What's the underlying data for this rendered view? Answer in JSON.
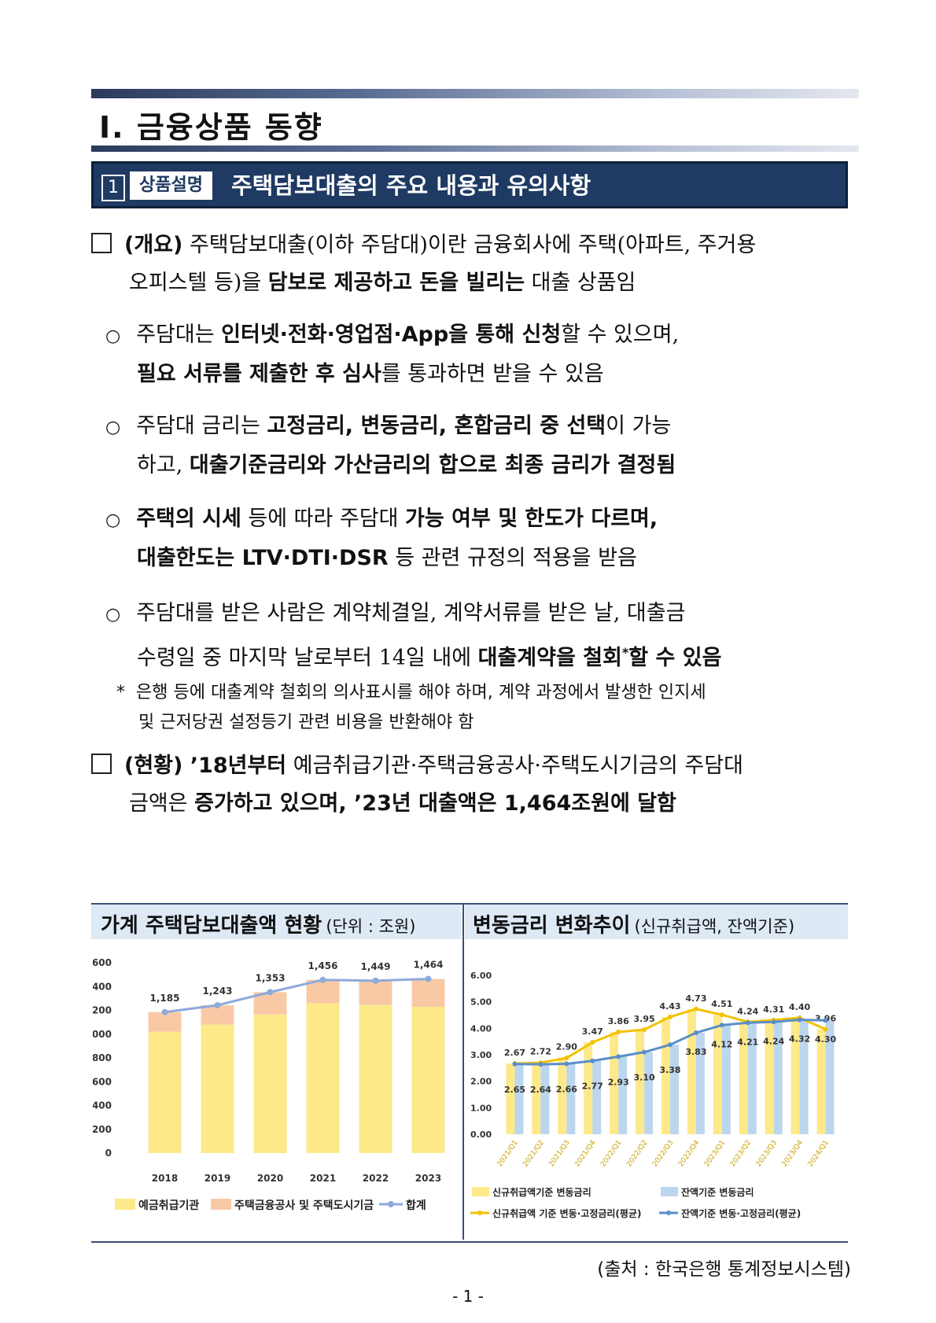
{
  "section": {
    "numeral": "Ⅰ.",
    "title": "금융상품 동향"
  },
  "banner": {
    "number": "1",
    "tag": "상품설명",
    "title": "주택담보대출의 주요 내용과 유의사항"
  },
  "overview": {
    "label": "(개요)",
    "line1": "주택담보대출(이하 주담대)이란 금융회사에 주택(아파트, 주거용",
    "line2_pre": "오피스텔 등)을 ",
    "line2_bold": "담보로 제공하고 돈을 빌리는",
    "line2_post": " 대출 상품임"
  },
  "bullets": [
    {
      "l1_a": "주담대는 ",
      "l1_b": "인터넷·전화·영업점·App을 통해 신청",
      "l1_c": "할 수 있으며,",
      "l2_a": "필요 서류를 제출한 후 심사",
      "l2_b": "를 통과하면 받을 수 있음"
    },
    {
      "l1_a": "주담대 금리는 ",
      "l1_b": "고정금리, 변동금리, 혼합금리 중 선택",
      "l1_c": "이 가능",
      "l2_a": "하고, ",
      "l2_b": "대출기준금리와 가산금리의 합으로 최종 금리가 결정됨"
    },
    {
      "l1_a": "주택의 시세",
      "l1_b": " 등에 따라 주담대 ",
      "l1_c": "가능 여부 및 한도가 다르며,",
      "l2_a": "대출한도는 LTV·DTI·DSR",
      "l2_b": " 등 관련 규정의 적용을 받음"
    },
    {
      "l1_a": "주담대를 받은 사람은 계약체결일, 계약서류를 받은 날, 대출금",
      "l2_a": "수령일 중 마지막 날로부터 14일 내에 ",
      "l2_b": "대출계약을 철회",
      "l2_sup": "*",
      "l2_c": "할 수 있음"
    }
  ],
  "footnote": {
    "mark": "*",
    "line1": "은행 등에 대출계약 철회의 의사표시를 해야 하며, 계약 과정에서 발생한 인지세",
    "line2": "및 근저당권 설정등기 관련 비용을 반환해야 함"
  },
  "status": {
    "label": "(현황)",
    "line1_a": " ’18년부터",
    "line1_b": " 예금취급기관·주택금융공사·주택도시기금의 주담대",
    "line2_a": "금액은 ",
    "line2_b": "증가하고 있으며, ’23년 대출액은 1,464조원에 달함"
  },
  "left_panel": {
    "title": "가계 주택담보대출액 현황",
    "subtitle": "(단위 : 조원)"
  },
  "right_panel": {
    "title": "변동금리 변화추이",
    "subtitle": "(신규취급액, 잔액기준)"
  },
  "source": "(출처 : 한국은행 통계정보시스템)",
  "page_number": "- 1 -",
  "colors": {
    "navy": "#1f3a63",
    "yellow": "#fde98a",
    "peach": "#f9c9a6",
    "blue_line": "#8eaadb",
    "gold_line": "#f2c200",
    "steel_line": "#5b8ec9",
    "light_blue_bar": "#bcd6ee"
  },
  "chart_data": [
    {
      "type": "bar",
      "title": "가계 주택담보대출액 현황",
      "unit": "조원",
      "categories": [
        "2018",
        "2019",
        "2020",
        "2021",
        "2022",
        "2023"
      ],
      "ylim": [
        0,
        1600
      ],
      "yticks": [
        "1,600",
        "1,400",
        "1,200",
        "1,000",
        "800",
        "600",
        "400",
        "200",
        "0"
      ],
      "series": [
        {
          "name": "예금취급기관",
          "kind": "stacked-bar",
          "values": [
            1020,
            1080,
            1165,
            1260,
            1245,
            1230
          ]
        },
        {
          "name": "주택금융공사 및 주택도시기금",
          "kind": "stacked-bar",
          "values": [
            165,
            163,
            188,
            196,
            204,
            234
          ]
        },
        {
          "name": "합계",
          "kind": "line",
          "values": [
            1185,
            1243,
            1353,
            1456,
            1449,
            1464
          ],
          "labels": [
            "1,185",
            "1,243",
            "1,353",
            "1,456",
            "1,449",
            "1,464"
          ]
        }
      ]
    },
    {
      "type": "bar",
      "title": "변동금리 변화추이",
      "categories": [
        "2021/Q1",
        "2021/Q2",
        "2021/Q3",
        "2021/Q4",
        "2022/Q1",
        "2022/Q2",
        "2022/Q3",
        "2022/Q4",
        "2023/Q1",
        "2023/Q2",
        "2023/Q3",
        "2023/Q4",
        "2024/Q1"
      ],
      "ylim": [
        0,
        6
      ],
      "yticks": [
        "6.00",
        "5.00",
        "4.00",
        "3.00",
        "2.00",
        "1.00",
        "0.00"
      ],
      "series": [
        {
          "name": "신규취급액기준 변동금리",
          "kind": "bar",
          "values": [
            2.67,
            2.72,
            2.9,
            3.47,
            3.86,
            3.95,
            4.43,
            4.73,
            4.51,
            4.24,
            4.31,
            4.4,
            3.96
          ],
          "labels": [
            "2.67",
            "2.72",
            "2.90",
            "3.47",
            "3.86",
            "3.95",
            "4.43",
            "4.73",
            "4.51",
            "4.24",
            "4.31",
            "4.40",
            "3.96"
          ]
        },
        {
          "name": "잔액기준 변동금리",
          "kind": "bar",
          "values": [
            2.65,
            2.64,
            2.66,
            2.77,
            2.93,
            3.1,
            3.38,
            3.83,
            4.12,
            4.21,
            4.24,
            4.32,
            4.3
          ],
          "labels": [
            "2.65",
            "2.64",
            "2.66",
            "2.77",
            "2.93",
            "3.10",
            "3.38",
            "3.83",
            "4.12",
            "4.21",
            "4.24",
            "4.32",
            "4.30"
          ]
        },
        {
          "name": "신규취급액 기준 변동·고정금리(평균)",
          "kind": "line",
          "values": [
            2.67,
            2.7,
            2.88,
            3.47,
            3.86,
            3.95,
            4.43,
            4.73,
            4.51,
            4.24,
            4.31,
            4.4,
            3.96
          ]
        },
        {
          "name": "잔액기준 변동·고정금리(평균)",
          "kind": "line",
          "values": [
            2.65,
            2.64,
            2.66,
            2.77,
            2.93,
            3.1,
            3.38,
            3.83,
            4.12,
            4.21,
            4.24,
            4.32,
            4.3
          ]
        }
      ]
    }
  ]
}
